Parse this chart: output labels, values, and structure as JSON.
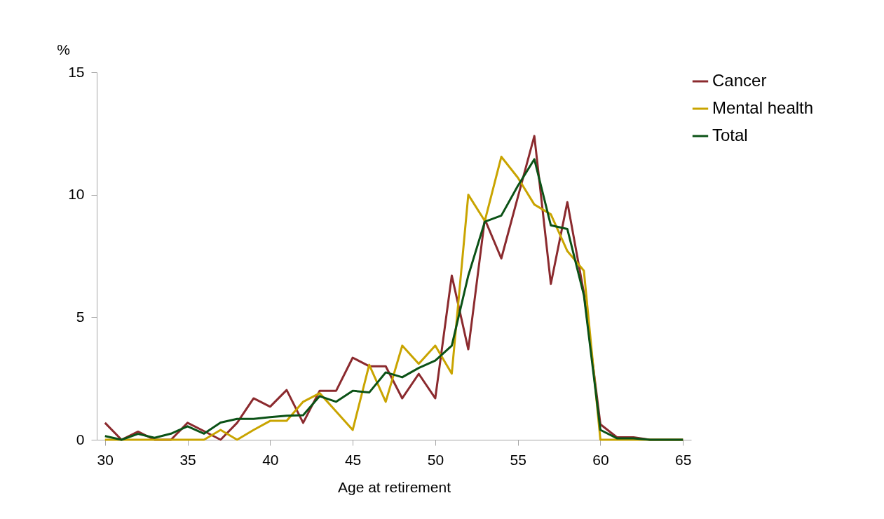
{
  "chart_data": {
    "type": "line",
    "xlabel": "Age at retirement",
    "ylabel": "%",
    "x": [
      30,
      31,
      32,
      33,
      34,
      35,
      36,
      37,
      38,
      39,
      40,
      41,
      42,
      43,
      44,
      45,
      46,
      47,
      48,
      49,
      50,
      51,
      52,
      53,
      54,
      55,
      56,
      57,
      58,
      59,
      60,
      61,
      62,
      63,
      64,
      65
    ],
    "xlim": [
      29.5,
      65.5
    ],
    "xticks": [
      30,
      35,
      40,
      45,
      50,
      55,
      60,
      65
    ],
    "ylim": [
      0,
      15
    ],
    "yticks": [
      0,
      5,
      10,
      15
    ],
    "grid": false,
    "legend": "right",
    "marker": "none",
    "line_style": "solid",
    "series": [
      {
        "name": "Cancer",
        "color": "#8b2a2e",
        "values": [
          0.69,
          0,
          0.33,
          0,
          0,
          0.69,
          0.35,
          0,
          0.69,
          1.69,
          1.35,
          2.03,
          0.69,
          2.0,
          2.0,
          3.35,
          3.0,
          3.0,
          1.69,
          2.69,
          1.69,
          6.7,
          3.69,
          9.0,
          7.4,
          9.9,
          12.4,
          6.36,
          9.7,
          6.0,
          0.63,
          0.1,
          0.1,
          0,
          0,
          0
        ]
      },
      {
        "name": "Mental health",
        "color": "#c9a400",
        "values": [
          0,
          0,
          0,
          0,
          0,
          0,
          0,
          0.4,
          0,
          0.4,
          0.77,
          0.77,
          1.55,
          1.9,
          1.15,
          0.4,
          3.06,
          1.55,
          3.84,
          3.1,
          3.84,
          2.7,
          10.0,
          8.93,
          11.55,
          10.7,
          9.6,
          9.2,
          7.7,
          6.9,
          0,
          0,
          0,
          0,
          0,
          0
        ]
      },
      {
        "name": "Total",
        "color": "#0b5216",
        "values": [
          0.15,
          0,
          0.24,
          0.08,
          0.25,
          0.55,
          0.25,
          0.7,
          0.85,
          0.85,
          0.92,
          0.98,
          1.0,
          1.78,
          1.55,
          2.0,
          1.93,
          2.75,
          2.55,
          2.93,
          3.23,
          3.84,
          6.7,
          8.9,
          9.15,
          10.36,
          11.45,
          8.75,
          8.6,
          5.9,
          0.4,
          0.06,
          0.06,
          0,
          0,
          0
        ]
      }
    ]
  }
}
